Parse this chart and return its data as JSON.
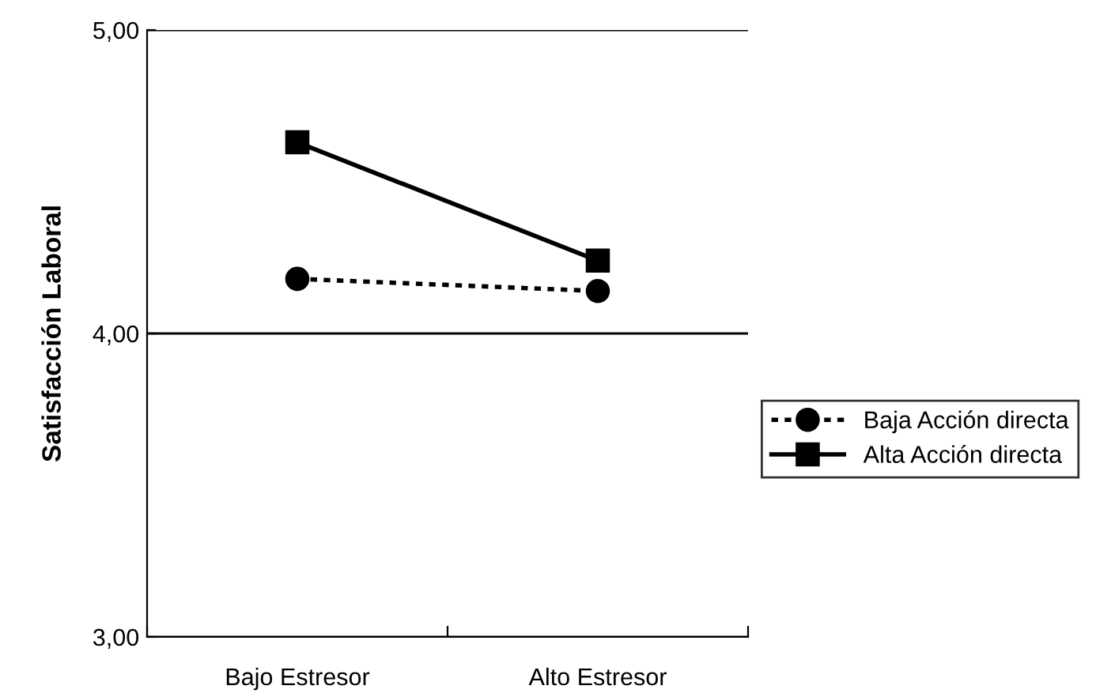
{
  "chart_data": {
    "type": "line",
    "ylabel": "Satisfacción Laboral",
    "categories": [
      "Bajo Estresor",
      "Alto Estresor"
    ],
    "series": [
      {
        "name": "Baja Acción directa",
        "color": "#000000",
        "values": [
          4.18,
          4.14
        ],
        "marker": "circle",
        "line_style": "dotted"
      },
      {
        "name": "Alta Acción directa",
        "color": "#000000",
        "values": [
          4.63,
          4.24
        ],
        "marker": "square",
        "line_style": "solid"
      }
    ],
    "ylim": [
      3,
      5
    ],
    "yticks": [
      {
        "value": 3,
        "label": "3,00"
      },
      {
        "value": 4,
        "label": "4,00"
      },
      {
        "value": 5,
        "label": "5,00"
      }
    ],
    "grid": "y",
    "legend": "right"
  }
}
